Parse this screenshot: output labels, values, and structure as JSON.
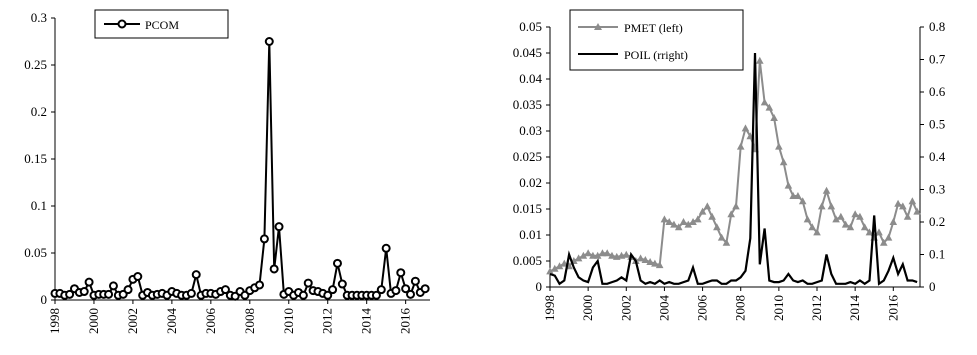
{
  "chart_data": [
    {
      "type": "line",
      "x_labels": [
        "1998",
        "2000",
        "2002",
        "2004",
        "2006",
        "2008",
        "2010",
        "2012",
        "2014",
        "2016"
      ],
      "xlim": [
        1998,
        2017.25
      ],
      "ylim": [
        0,
        0.3
      ],
      "yticks": [
        "0",
        "0.05",
        "0.1",
        "0.15",
        "0.2",
        "0.25",
        "0.3"
      ],
      "legend_position": "top-left",
      "series": [
        {
          "name": "PCOM",
          "marker": "circle",
          "color": "#000000",
          "x": [
            1998.0,
            1998.25,
            1998.5,
            1998.75,
            1999.0,
            1999.25,
            1999.5,
            1999.75,
            2000.0,
            2000.25,
            2000.5,
            2000.75,
            2001.0,
            2001.25,
            2001.5,
            2001.75,
            2002.0,
            2002.25,
            2002.5,
            2002.75,
            2003.0,
            2003.25,
            2003.5,
            2003.75,
            2004.0,
            2004.25,
            2004.5,
            2004.75,
            2005.0,
            2005.25,
            2005.5,
            2005.75,
            2006.0,
            2006.25,
            2006.5,
            2006.75,
            2007.0,
            2007.25,
            2007.5,
            2007.75,
            2008.0,
            2008.25,
            2008.5,
            2008.75,
            2009.0,
            2009.25,
            2009.5,
            2009.75,
            2010.0,
            2010.25,
            2010.5,
            2010.75,
            2011.0,
            2011.25,
            2011.5,
            2011.75,
            2012.0,
            2012.25,
            2012.5,
            2012.75,
            2013.0,
            2013.25,
            2013.5,
            2013.75,
            2014.0,
            2014.25,
            2014.5,
            2014.75,
            2015.0,
            2015.25,
            2015.5,
            2015.75,
            2016.0,
            2016.25,
            2016.5,
            2016.75,
            2017.0
          ],
          "values": [
            0.007,
            0.007,
            0.005,
            0.006,
            0.012,
            0.008,
            0.009,
            0.019,
            0.005,
            0.006,
            0.006,
            0.006,
            0.015,
            0.005,
            0.006,
            0.011,
            0.022,
            0.025,
            0.005,
            0.008,
            0.005,
            0.006,
            0.007,
            0.005,
            0.009,
            0.007,
            0.005,
            0.005,
            0.007,
            0.027,
            0.005,
            0.007,
            0.007,
            0.006,
            0.009,
            0.011,
            0.005,
            0.004,
            0.009,
            0.005,
            0.01,
            0.013,
            0.016,
            0.065,
            0.275,
            0.033,
            0.078,
            0.006,
            0.009,
            0.005,
            0.008,
            0.005,
            0.018,
            0.01,
            0.009,
            0.007,
            0.005,
            0.011,
            0.039,
            0.017,
            0.005,
            0.005,
            0.005,
            0.005,
            0.005,
            0.005,
            0.005,
            0.011,
            0.055,
            0.007,
            0.01,
            0.029,
            0.012,
            0.006,
            0.02,
            0.008,
            0.012
          ]
        }
      ]
    },
    {
      "type": "line",
      "x_labels": [
        "1998",
        "2000",
        "2002",
        "2004",
        "2006",
        "2008",
        "2010",
        "2012",
        "2014",
        "2016"
      ],
      "xlim": [
        1998,
        2017.4
      ],
      "ylim_left": [
        0,
        0.05
      ],
      "ylim_right": [
        0,
        0.8
      ],
      "yticks_left": [
        "0",
        "0.005",
        "0.01",
        "0.015",
        "0.02",
        "0.025",
        "0.03",
        "0.035",
        "0.04",
        "0.045",
        "0.05"
      ],
      "yticks_right": [
        "0",
        "0.1",
        "0.2",
        "0.3",
        "0.4",
        "0.5",
        "0.6",
        "0.7",
        "0.8"
      ],
      "legend_position": "top-left",
      "series": [
        {
          "name": "PMET (left)",
          "axis": "left",
          "marker": "triangle",
          "color": "#8c8c8c",
          "x": [
            1998.0,
            1998.25,
            1998.5,
            1998.75,
            1999.0,
            1999.25,
            1999.5,
            1999.75,
            2000.0,
            2000.25,
            2000.5,
            2000.75,
            2001.0,
            2001.25,
            2001.5,
            2001.75,
            2002.0,
            2002.25,
            2002.5,
            2002.75,
            2003.0,
            2003.25,
            2003.5,
            2003.75,
            2004.0,
            2004.25,
            2004.5,
            2004.75,
            2005.0,
            2005.25,
            2005.5,
            2005.75,
            2006.0,
            2006.25,
            2006.5,
            2006.75,
            2007.0,
            2007.25,
            2007.5,
            2007.75,
            2008.0,
            2008.25,
            2008.5,
            2008.75,
            2009.0,
            2009.25,
            2009.5,
            2009.75,
            2010.0,
            2010.25,
            2010.5,
            2010.75,
            2011.0,
            2011.25,
            2011.5,
            2011.75,
            2012.0,
            2012.25,
            2012.5,
            2012.75,
            2013.0,
            2013.25,
            2013.5,
            2013.75,
            2014.0,
            2014.25,
            2014.5,
            2014.75,
            2015.0,
            2015.25,
            2015.5,
            2015.75,
            2016.0,
            2016.25,
            2016.5,
            2016.75,
            2017.0,
            2017.25
          ],
          "values": [
            0.003,
            0.0035,
            0.004,
            0.0045,
            0.004,
            0.005,
            0.0055,
            0.006,
            0.0065,
            0.006,
            0.006,
            0.0065,
            0.0065,
            0.006,
            0.0058,
            0.006,
            0.0062,
            0.0058,
            0.005,
            0.0055,
            0.0052,
            0.0048,
            0.0045,
            0.0042,
            0.013,
            0.0125,
            0.012,
            0.0115,
            0.0125,
            0.012,
            0.0125,
            0.013,
            0.0145,
            0.0155,
            0.0135,
            0.0115,
            0.0095,
            0.0085,
            0.014,
            0.0155,
            0.027,
            0.0305,
            0.029,
            0.0265,
            0.0435,
            0.0355,
            0.0345,
            0.0325,
            0.027,
            0.024,
            0.0195,
            0.0175,
            0.0175,
            0.0165,
            0.013,
            0.0115,
            0.0105,
            0.0155,
            0.0185,
            0.0155,
            0.013,
            0.0135,
            0.012,
            0.0115,
            0.014,
            0.0135,
            0.0115,
            0.0105,
            0.0095,
            0.0105,
            0.0085,
            0.0095,
            0.0125,
            0.016,
            0.0155,
            0.0135,
            0.0165,
            0.0145
          ]
        },
        {
          "name": "POIL (rright)",
          "axis": "right",
          "marker": "none",
          "color": "#000000",
          "x": [
            1998.0,
            1998.25,
            1998.5,
            1998.75,
            1999.0,
            1999.25,
            1999.5,
            1999.75,
            2000.0,
            2000.25,
            2000.5,
            2000.75,
            2001.0,
            2001.25,
            2001.5,
            2001.75,
            2002.0,
            2002.25,
            2002.5,
            2002.75,
            2003.0,
            2003.25,
            2003.5,
            2003.75,
            2004.0,
            2004.25,
            2004.5,
            2004.75,
            2005.0,
            2005.25,
            2005.5,
            2005.75,
            2006.0,
            2006.25,
            2006.5,
            2006.75,
            2007.0,
            2007.25,
            2007.5,
            2007.75,
            2008.0,
            2008.25,
            2008.5,
            2008.75,
            2009.0,
            2009.25,
            2009.5,
            2009.75,
            2010.0,
            2010.25,
            2010.5,
            2010.75,
            2011.0,
            2011.25,
            2011.5,
            2011.75,
            2012.0,
            2012.25,
            2012.5,
            2012.75,
            2013.0,
            2013.25,
            2013.5,
            2013.75,
            2014.0,
            2014.25,
            2014.5,
            2014.75,
            2015.0,
            2015.25,
            2015.5,
            2015.75,
            2016.0,
            2016.25,
            2016.5,
            2016.75,
            2017.0,
            2017.25
          ],
          "values": [
            0.04,
            0.035,
            0.01,
            0.02,
            0.1,
            0.06,
            0.03,
            0.02,
            0.015,
            0.06,
            0.08,
            0.01,
            0.01,
            0.015,
            0.02,
            0.03,
            0.02,
            0.1,
            0.08,
            0.02,
            0.01,
            0.015,
            0.01,
            0.02,
            0.01,
            0.015,
            0.01,
            0.01,
            0.015,
            0.02,
            0.06,
            0.01,
            0.01,
            0.015,
            0.02,
            0.02,
            0.01,
            0.01,
            0.02,
            0.02,
            0.03,
            0.05,
            0.15,
            0.72,
            0.07,
            0.18,
            0.02,
            0.015,
            0.015,
            0.02,
            0.04,
            0.02,
            0.015,
            0.02,
            0.01,
            0.01,
            0.015,
            0.02,
            0.1,
            0.04,
            0.01,
            0.01,
            0.01,
            0.015,
            0.01,
            0.02,
            0.01,
            0.02,
            0.22,
            0.01,
            0.02,
            0.05,
            0.09,
            0.04,
            0.07,
            0.02,
            0.02,
            0.015
          ]
        }
      ]
    }
  ]
}
